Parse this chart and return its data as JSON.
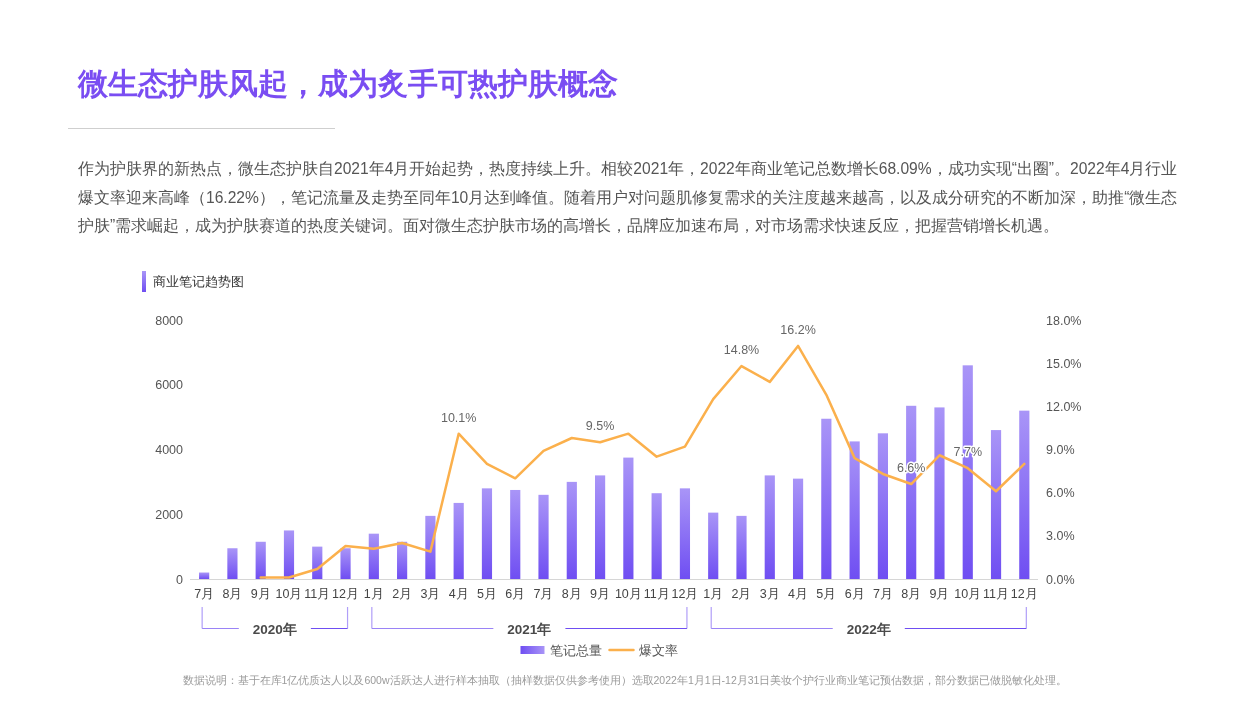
{
  "chart_data": {
    "type": "bar",
    "title": "微生态护肤风起，成为炙手可热护肤概念",
    "subtitle": "作为护肤界的新热点，微生态护肤自2021年4月开始起势，热度持续上升。相较2021年，2022年商业笔记总数增长68.09%，成功实现“出圈”。2022年4月行业爆文率迎来高峰（16.22%），笔记流量及走势至同年10月达到峰值。随着用户对问题肌修复需求的关注度越来越高，以及成分研究的不断加深，助推“微生态护肤”需求崛起，成为护肤赛道的热度关键词。面对微生态护肤市场的高增长，品牌应加速布局，对市场需求快速反应，把握营销增长机遇。",
    "annotations": [
      "商业笔记趋势图",
      "2020年",
      "2021年",
      "2022年",
      "数据说明：基于在库1亿优质达人以及600w活跃达人进行样本抽取（抽样数据仅供参考使用）选取2022年1月1日-12月31日美妆个护行业商业笔记预估数据，部分数据已做脱敏化处理。"
    ],
    "x": [
      "2020-07",
      "2020-08",
      "2020-09",
      "2020-10",
      "2020-11",
      "2020-12",
      "2021-01",
      "2021-02",
      "2021-03",
      "2021-04",
      "2021-05",
      "2021-06",
      "2021-07",
      "2021-08",
      "2021-09",
      "2021-10",
      "2021-11",
      "2021-12",
      "2022-01",
      "2022-02",
      "2022-03",
      "2022-04",
      "2022-05",
      "2022-06",
      "2022-07",
      "2022-08",
      "2022-09",
      "2022-10",
      "2022-11",
      "2022-12"
    ],
    "xlim": [
      "2020-06-16",
      "2022-12-16"
    ],
    "xticks": [
      {
        "value": "2020-07",
        "label": "7月"
      },
      {
        "value": "2020-08",
        "label": "8月"
      },
      {
        "value": "2020-09",
        "label": "9月"
      },
      {
        "value": "2020-10",
        "label": "10月"
      },
      {
        "value": "2020-11",
        "label": "11月"
      },
      {
        "value": "2020-12",
        "label": "12月"
      },
      {
        "value": "2021-01",
        "label": "1月"
      },
      {
        "value": "2021-02",
        "label": "2月"
      },
      {
        "value": "2021-03",
        "label": "3月"
      },
      {
        "value": "2021-04",
        "label": "4月"
      },
      {
        "value": "2021-05",
        "label": "5月"
      },
      {
        "value": "2021-06",
        "label": "6月"
      },
      {
        "value": "2021-07",
        "label": "7月"
      },
      {
        "value": "2021-08",
        "label": "8月"
      },
      {
        "value": "2021-09",
        "label": "9月"
      },
      {
        "value": "2021-10",
        "label": "10月"
      },
      {
        "value": "2021-11",
        "label": "11月"
      },
      {
        "value": "2021-12",
        "label": "12月"
      },
      {
        "value": "2022-01",
        "label": "1月"
      },
      {
        "value": "2022-02",
        "label": "2月"
      },
      {
        "value": "2022-03",
        "label": "3月"
      },
      {
        "value": "2022-04",
        "label": "4月"
      },
      {
        "value": "2022-05",
        "label": "5月"
      },
      {
        "value": "2022-06",
        "label": "6月"
      },
      {
        "value": "2022-07",
        "label": "7月"
      },
      {
        "value": "2022-08",
        "label": "8月"
      },
      {
        "value": "2022-09",
        "label": "9月"
      },
      {
        "value": "2022-10",
        "label": "10月"
      },
      {
        "value": "2022-11",
        "label": "11月"
      },
      {
        "value": "2022-12",
        "label": "12月"
      }
    ],
    "ylim": [
      0,
      8000
    ],
    "yticks": [
      0,
      2000,
      4000,
      6000,
      8000
    ],
    "y2lim": [
      0,
      18
    ],
    "y2ticks": [
      {
        "value": 0,
        "label": "0.0%"
      },
      {
        "value": 3,
        "label": "3.0%"
      },
      {
        "value": 6,
        "label": "6.0%"
      },
      {
        "value": 9,
        "label": "9.0%"
      },
      {
        "value": 12,
        "label": "12.0%"
      },
      {
        "value": 15,
        "label": "15.0%"
      },
      {
        "value": 18,
        "label": "18.0%"
      }
    ],
    "legend": "bottom",
    "series": [
      {
        "name": "笔记总量",
        "color": "#6f4ef2",
        "values": [
          200,
          950,
          1150,
          1500,
          1000,
          950,
          1400,
          1150,
          1950,
          2350,
          2800,
          2750,
          2600,
          3000,
          3200,
          3750,
          2650,
          2800,
          2050,
          1950,
          3200,
          3100,
          4950,
          4250,
          4500,
          5350,
          5300,
          6600,
          4600,
          5200
        ]
      },
      {
        "name": "爆文率",
        "type": "line",
        "axis": "y2",
        "color": "#fbb04c",
        "values": [
          null,
          null,
          0.1,
          0.1,
          0.7,
          2.3,
          2.1,
          2.5,
          1.9,
          10.1,
          8.0,
          7.0,
          8.9,
          9.8,
          9.5,
          10.1,
          8.5,
          9.2,
          12.5,
          14.8,
          13.7,
          16.2,
          12.8,
          8.4,
          7.3,
          6.6,
          8.6,
          7.7,
          6.1,
          8.0
        ],
        "value_labels": [
          null,
          null,
          null,
          null,
          null,
          null,
          null,
          null,
          null,
          "10.1%",
          null,
          null,
          null,
          null,
          "9.5%",
          null,
          null,
          null,
          null,
          "14.8%",
          null,
          "16.2%",
          null,
          null,
          null,
          "6.6%",
          null,
          "7.7%",
          null,
          null
        ]
      }
    ]
  }
}
